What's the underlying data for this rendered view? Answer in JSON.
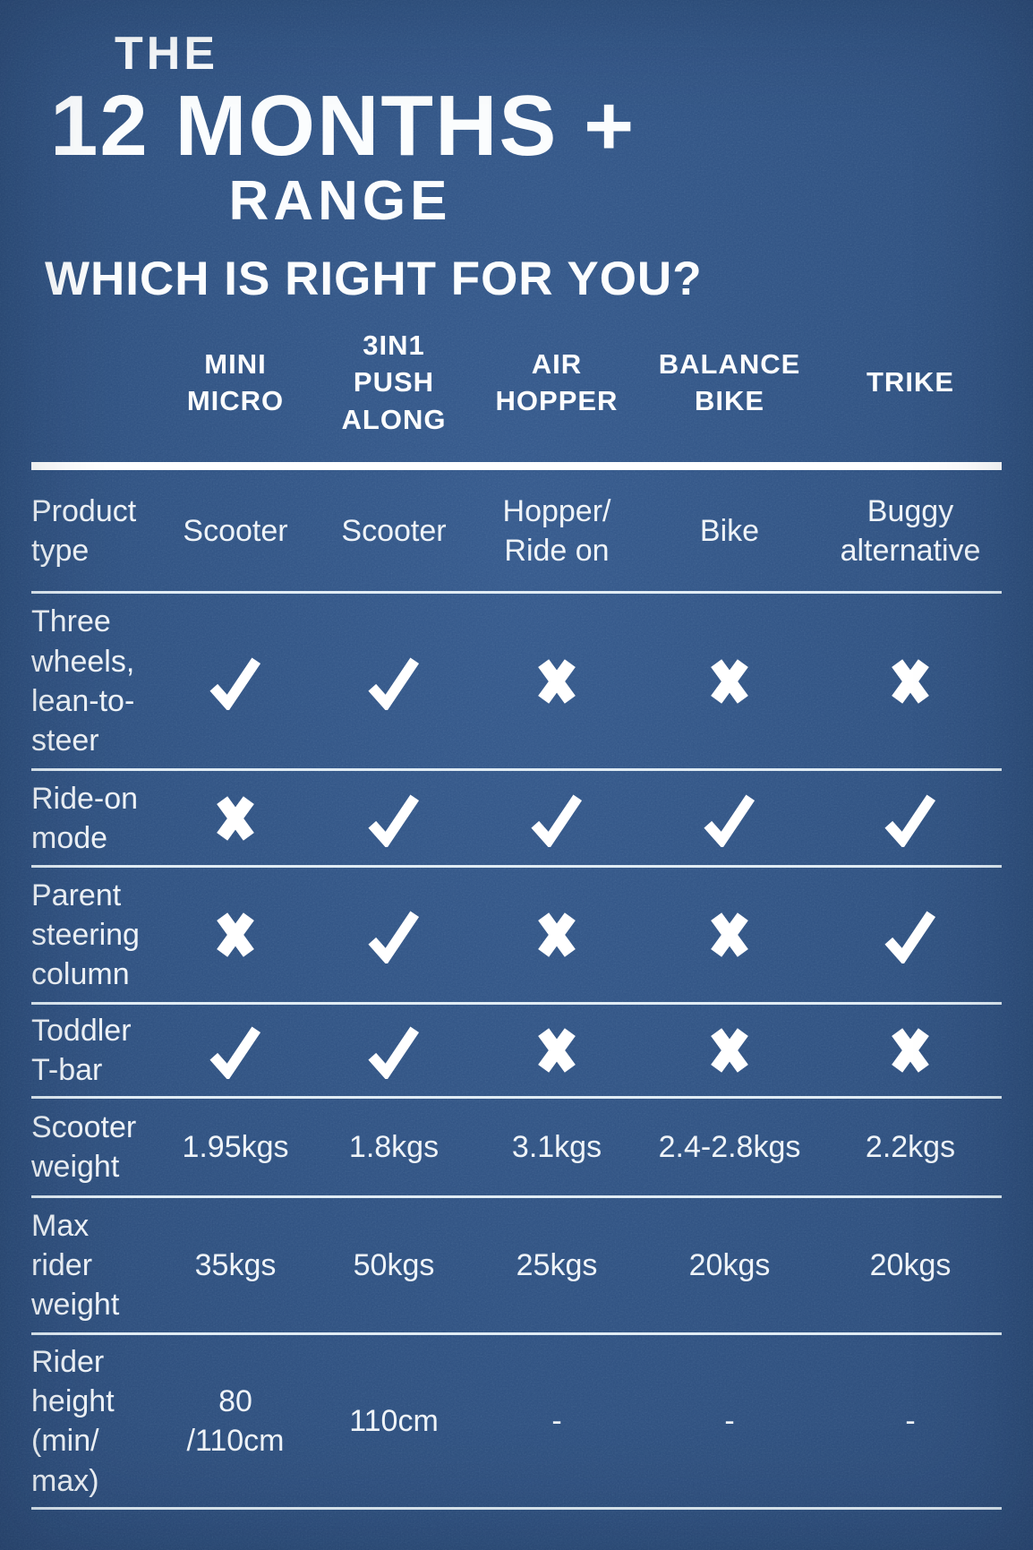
{
  "header": {
    "kicker": "THE",
    "title": "12 MONTHS +",
    "subtitle": "RANGE",
    "question": "WHICH IS RIGHT FOR YOU?"
  },
  "colors": {
    "background": "#2F5181",
    "text": "#F2F6FA",
    "rule_thick": "#FFFFFF",
    "rule_thin": "#DFEBF4",
    "icon": "#FFFFFF"
  },
  "table": {
    "columns": [
      {
        "label": "MINI\nMICRO"
      },
      {
        "label": "3IN1\nPUSH\nALONG"
      },
      {
        "label": "AIR\nHOPPER"
      },
      {
        "label": "BALANCE\nBIKE"
      },
      {
        "label": "TRIKE"
      }
    ],
    "rows": [
      {
        "label": "Product\ntype",
        "cells": [
          {
            "type": "text",
            "value": "Scooter"
          },
          {
            "type": "text",
            "value": "Scooter"
          },
          {
            "type": "text",
            "value": "Hopper/\nRide on"
          },
          {
            "type": "text",
            "value": "Bike"
          },
          {
            "type": "text",
            "value": "Buggy\nalternative"
          }
        ]
      },
      {
        "label": "Three\nwheels,\nlean-to-\nsteer",
        "cells": [
          {
            "type": "check"
          },
          {
            "type": "check"
          },
          {
            "type": "cross"
          },
          {
            "type": "cross"
          },
          {
            "type": "cross"
          }
        ]
      },
      {
        "label": "Ride-on\nmode",
        "cells": [
          {
            "type": "cross"
          },
          {
            "type": "check"
          },
          {
            "type": "check"
          },
          {
            "type": "check"
          },
          {
            "type": "check"
          }
        ]
      },
      {
        "label": "Parent\nsteering\ncolumn",
        "cells": [
          {
            "type": "cross"
          },
          {
            "type": "check"
          },
          {
            "type": "cross"
          },
          {
            "type": "cross"
          },
          {
            "type": "check"
          }
        ]
      },
      {
        "label": "Toddler\nT-bar",
        "cells": [
          {
            "type": "check"
          },
          {
            "type": "check"
          },
          {
            "type": "cross"
          },
          {
            "type": "cross"
          },
          {
            "type": "cross"
          }
        ]
      },
      {
        "label": "Scooter\nweight",
        "cells": [
          {
            "type": "text",
            "value": "1.95kgs"
          },
          {
            "type": "text",
            "value": "1.8kgs"
          },
          {
            "type": "text",
            "value": "3.1kgs"
          },
          {
            "type": "text",
            "value": "2.4-2.8kgs"
          },
          {
            "type": "text",
            "value": "2.2kgs"
          }
        ]
      },
      {
        "label": "Max\nrider\nweight",
        "cells": [
          {
            "type": "text",
            "value": "35kgs"
          },
          {
            "type": "text",
            "value": "50kgs"
          },
          {
            "type": "text",
            "value": "25kgs"
          },
          {
            "type": "text",
            "value": "20kgs"
          },
          {
            "type": "text",
            "value": "20kgs"
          }
        ]
      },
      {
        "label": "Rider\nheight\n(min/\nmax)",
        "cells": [
          {
            "type": "text",
            "value": "80\n/110cm"
          },
          {
            "type": "text",
            "value": "110cm"
          },
          {
            "type": "text",
            "value": "-"
          },
          {
            "type": "text",
            "value": "-"
          },
          {
            "type": "text",
            "value": "-"
          }
        ]
      }
    ]
  },
  "chart_data": {
    "type": "table",
    "title": "THE 12 MONTHS + RANGE",
    "subtitle": "WHICH IS RIGHT FOR YOU?",
    "columns": [
      "MINI MICRO",
      "3IN1 PUSH ALONG",
      "AIR HOPPER",
      "BALANCE BIKE",
      "TRIKE"
    ],
    "row_labels": [
      "Product type",
      "Three wheels, lean-to-steer",
      "Ride-on mode",
      "Parent steering column",
      "Toddler T-bar",
      "Scooter weight",
      "Max rider weight",
      "Rider height (min/max)"
    ],
    "rows": [
      [
        "Scooter",
        "Scooter",
        "Hopper/Ride on",
        "Bike",
        "Buggy alternative"
      ],
      [
        "yes",
        "yes",
        "no",
        "no",
        "no"
      ],
      [
        "no",
        "yes",
        "yes",
        "yes",
        "yes"
      ],
      [
        "no",
        "yes",
        "no",
        "no",
        "yes"
      ],
      [
        "yes",
        "yes",
        "no",
        "no",
        "no"
      ],
      [
        "1.95kgs",
        "1.8kgs",
        "3.1kgs",
        "2.4-2.8kgs",
        "2.2kgs"
      ],
      [
        "35kgs",
        "50kgs",
        "25kgs",
        "20kgs",
        "20kgs"
      ],
      [
        "80/110cm",
        "110cm",
        "-",
        "-",
        "-"
      ]
    ],
    "legend_position": "none",
    "grid": "horizontal-rules"
  }
}
